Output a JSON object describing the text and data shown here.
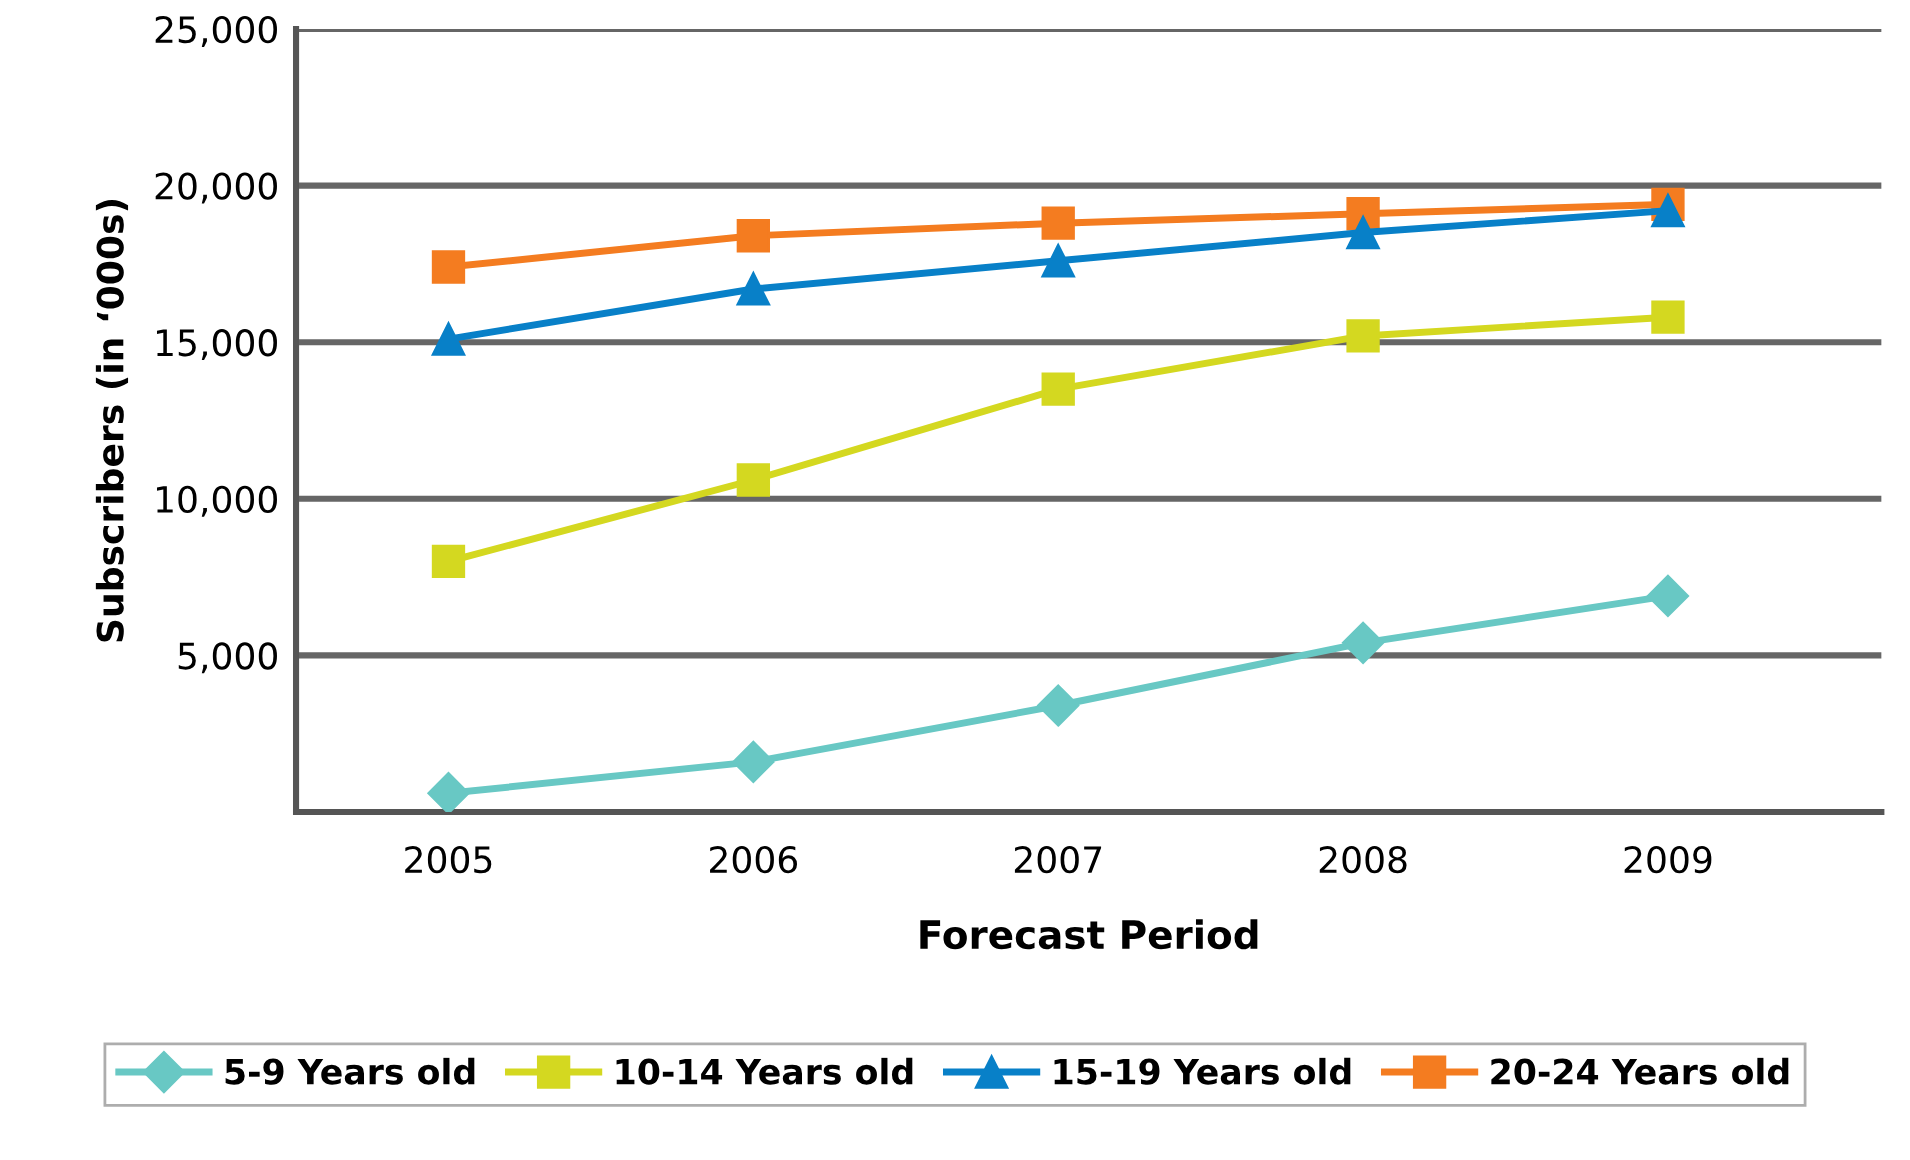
{
  "chart_data": {
    "type": "line",
    "xlabel": "Forecast Period",
    "ylabel": "Subscribers (in ‘000s)",
    "categories": [
      "2005",
      "2006",
      "2007",
      "2008",
      "2009"
    ],
    "ylim": [
      0,
      25000
    ],
    "yticks": [
      {
        "value": 0,
        "label": null
      },
      {
        "value": 5000,
        "label": "5,000"
      },
      {
        "value": 10000,
        "label": "10,000"
      },
      {
        "value": 15000,
        "label": "15,000"
      },
      {
        "value": 20000,
        "label": "20,000"
      },
      {
        "value": 25000,
        "label": "25,000"
      }
    ],
    "grid": "y",
    "legend": "bottom",
    "series": [
      {
        "name": "5-9 Years old",
        "color": "#68c8c4",
        "marker": "diamond",
        "values": [
          600,
          1600,
          3400,
          5400,
          6900
        ]
      },
      {
        "name": "10-14 Years old",
        "color": "#d4d820",
        "marker": "square",
        "values": [
          8000,
          10600,
          13500,
          15200,
          15800
        ]
      },
      {
        "name": "15-19 Years old",
        "color": "#0880c8",
        "marker": "triangle",
        "values": [
          15100,
          16700,
          17600,
          18500,
          19200
        ]
      },
      {
        "name": "20-24 Years old",
        "color": "#f47c20",
        "marker": "square",
        "values": [
          17400,
          18400,
          18800,
          19100,
          19400
        ]
      }
    ]
  }
}
